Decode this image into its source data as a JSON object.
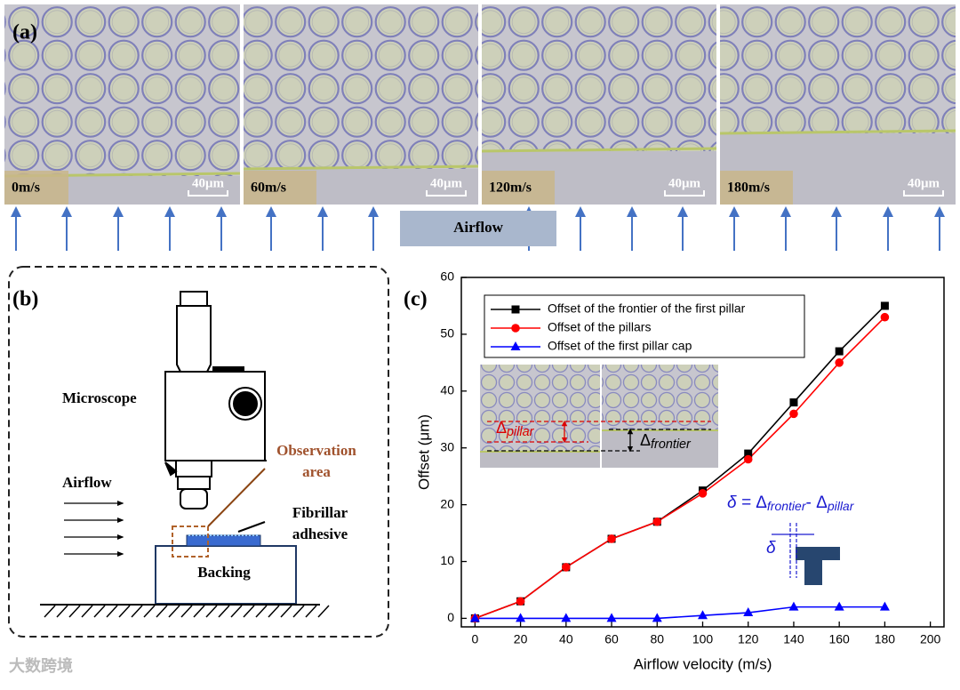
{
  "panel_a": {
    "label": "(a)",
    "images": [
      {
        "speed": "0m/s",
        "scale": "40μm"
      },
      {
        "speed": "60m/s",
        "scale": "40μm"
      },
      {
        "speed": "120m/s",
        "scale": "40μm"
      },
      {
        "speed": "180m/s",
        "scale": "40μm"
      }
    ],
    "airflow": "Airflow"
  },
  "panel_b": {
    "label": "(b)",
    "microscope": "Microscope",
    "observation": [
      "Observation",
      "area"
    ],
    "airflow": "Airflow",
    "adhesive": [
      "Fibrillar",
      "adhesive"
    ],
    "backing": "Backing"
  },
  "chart_data": {
    "type": "line",
    "panel_label": "(c)",
    "x_label": "Airflow velocity (m/s)",
    "y_label": "Offset (μm)",
    "x": [
      0,
      20,
      40,
      60,
      80,
      100,
      120,
      140,
      160,
      180
    ],
    "series": [
      {
        "name": "Offset of the frontier of the first pillar",
        "color": "#000000",
        "marker": "square",
        "values": [
          0,
          3,
          9,
          14,
          17,
          22.5,
          29,
          38,
          47,
          55
        ]
      },
      {
        "name": "Offset of the pillars",
        "color": "#ff0000",
        "marker": "circle",
        "values": [
          0,
          3,
          9,
          14,
          17,
          22,
          28,
          36,
          45,
          53
        ]
      },
      {
        "name": "Offset of the first pillar cap",
        "color": "#0000ff",
        "marker": "triangle",
        "values": [
          0,
          0,
          0,
          0,
          0,
          0.5,
          1,
          2,
          2,
          2
        ]
      }
    ],
    "xlim": [
      -6,
      206
    ],
    "xticks": [
      0,
      20,
      40,
      60,
      80,
      100,
      120,
      140,
      160,
      180,
      200
    ],
    "ylim": [
      -1.5,
      60
    ],
    "yticks": [
      0,
      10,
      20,
      30,
      40,
      50,
      60
    ],
    "legend": "top-left",
    "inset": {
      "pillar": {
        "symbol": "Δ",
        "sub": "pillar"
      },
      "frontier": {
        "symbol": "Δ",
        "sub": "frontier"
      },
      "equation": {
        "lhs": "δ = ",
        "a": "Δ",
        "a_sub": "frontier",
        "minus": "- ",
        "b": "Δ",
        "b_sub": "pillar"
      },
      "delta": "δ"
    }
  },
  "watermark": "大数跨境"
}
